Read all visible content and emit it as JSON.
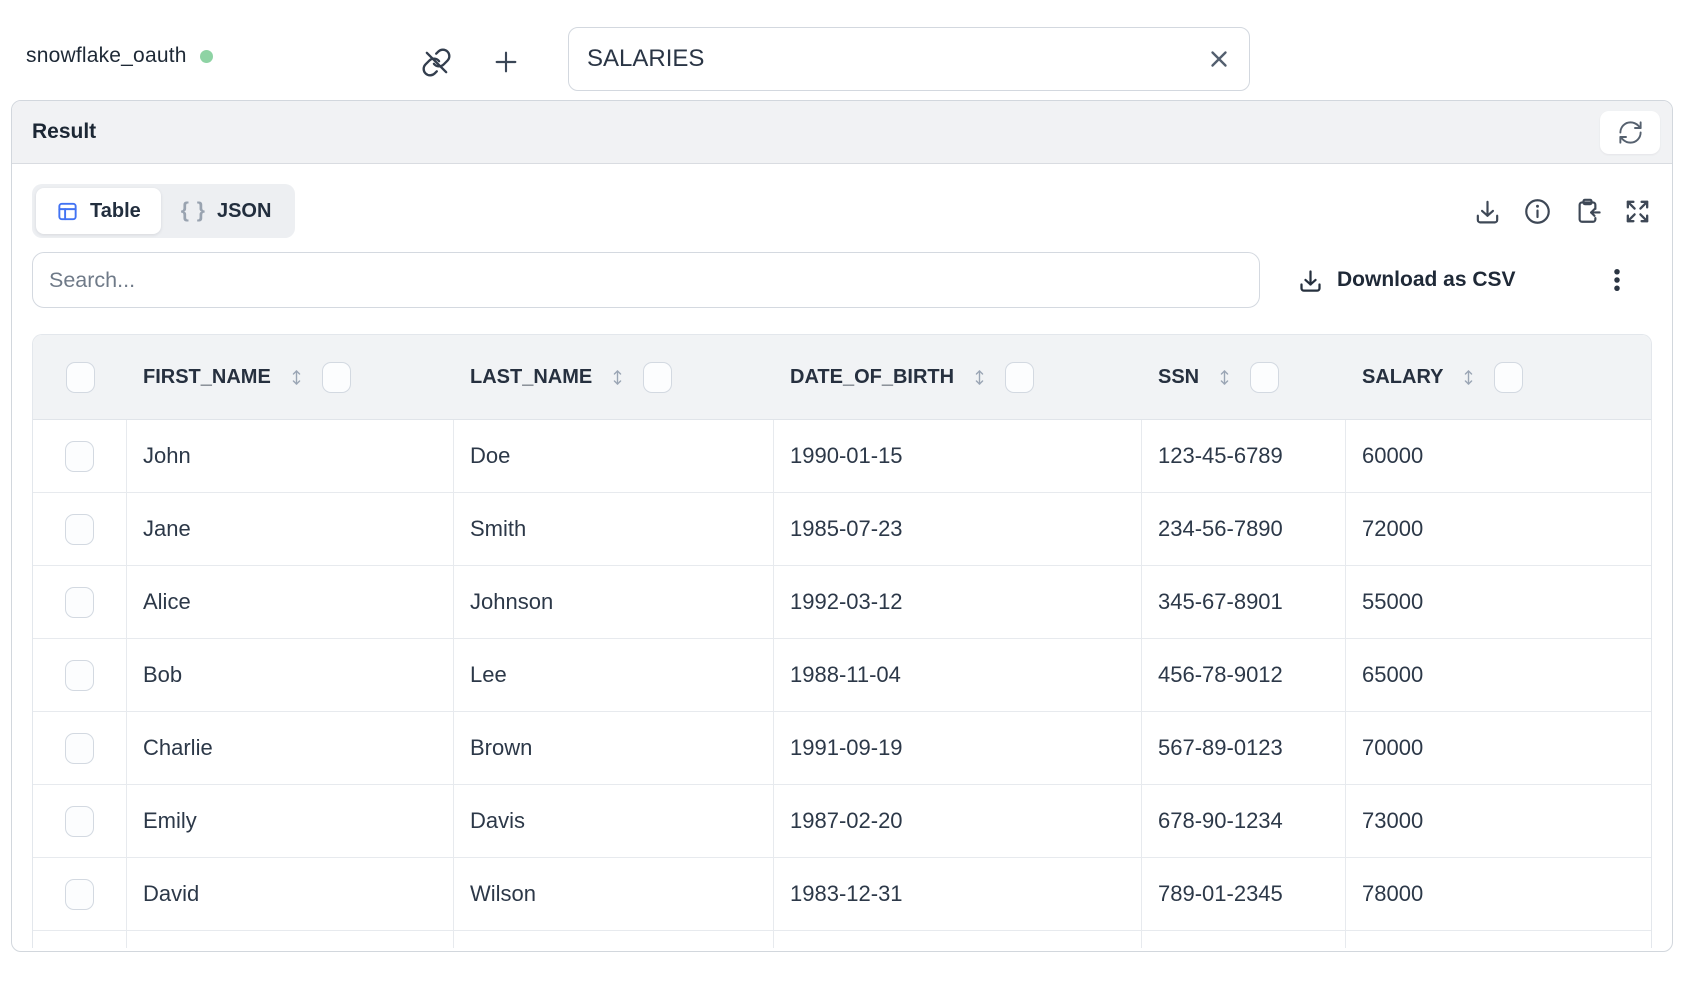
{
  "connection": {
    "name": "snowflake_oauth",
    "status": "connected",
    "status_color": "#8ed3a4"
  },
  "topbar": {
    "table_input_value": "SALARIES",
    "icons": [
      "link-off-icon",
      "plus-icon",
      "clear-icon"
    ]
  },
  "result_panel": {
    "title": "Result",
    "refresh_icon": "refresh-icon"
  },
  "view_toggle": {
    "table_label": "Table",
    "json_braces": "{ }",
    "json_label": "JSON",
    "active": "Table",
    "table_icon_color": "#4273f3"
  },
  "toolbar_icons": [
    "download-icon",
    "info-icon",
    "clipboard-paste-icon",
    "expand-icon"
  ],
  "search": {
    "placeholder": "Search..."
  },
  "actions": {
    "download_csv_label": "Download as CSV",
    "more_icon": "kebab-icon"
  },
  "table": {
    "columns": [
      "FIRST_NAME",
      "LAST_NAME",
      "DATE_OF_BIRTH",
      "SSN",
      "SALARY"
    ],
    "rows": [
      [
        "John",
        "Doe",
        "1990-01-15",
        "123-45-6789",
        "60000"
      ],
      [
        "Jane",
        "Smith",
        "1985-07-23",
        "234-56-7890",
        "72000"
      ],
      [
        "Alice",
        "Johnson",
        "1992-03-12",
        "345-67-8901",
        "55000"
      ],
      [
        "Bob",
        "Lee",
        "1988-11-04",
        "456-78-9012",
        "65000"
      ],
      [
        "Charlie",
        "Brown",
        "1991-09-19",
        "567-89-0123",
        "70000"
      ],
      [
        "Emily",
        "Davis",
        "1987-02-20",
        "678-90-1234",
        "73000"
      ],
      [
        "David",
        "Wilson",
        "1983-12-31",
        "789-01-2345",
        "78000"
      ]
    ],
    "header_icons": [
      "sort-icon",
      "column-checkbox"
    ]
  }
}
